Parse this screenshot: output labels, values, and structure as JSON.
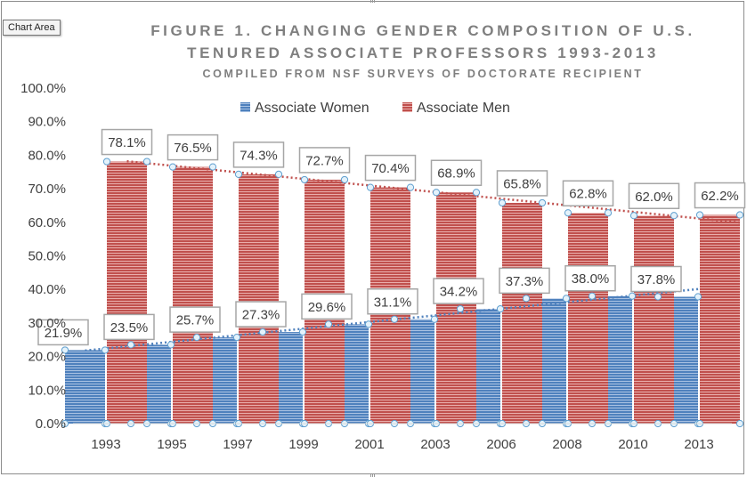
{
  "tooltip": "Chart Area",
  "chart_data": {
    "type": "bar",
    "title": "FIGURE 1. CHANGING GENDER COMPOSITION OF U.S. TENURED ASSOCIATE PROFESSORS 1993-2013",
    "title_line1": "FIGURE 1. CHANGING GENDER COMPOSITION OF U.S.",
    "title_line2": "TENURED ASSOCIATE PROFESSORS 1993-2013",
    "subtitle": "COMPILED FROM NSF SURVEYS OF DOCTORATE RECIPIENT",
    "categories": [
      "1993",
      "1995",
      "1997",
      "1999",
      "2001",
      "2003",
      "2006",
      "2008",
      "2010",
      "2013"
    ],
    "series": [
      {
        "name": "Associate Women",
        "values": [
          21.9,
          23.5,
          25.7,
          27.3,
          29.6,
          31.1,
          34.2,
          37.3,
          38.0,
          37.8
        ],
        "labels": [
          "21.9%",
          "23.5%",
          "25.7%",
          "27.3%",
          "29.6%",
          "31.1%",
          "34.2%",
          "37.3%",
          "38.0%",
          "37.8%"
        ],
        "color": "#4f81bd",
        "trendline": "linear"
      },
      {
        "name": "Associate Men",
        "values": [
          78.1,
          76.5,
          74.3,
          72.7,
          70.4,
          68.9,
          65.8,
          62.8,
          62.0,
          62.2
        ],
        "labels": [
          "78.1%",
          "76.5%",
          "74.3%",
          "72.7%",
          "70.4%",
          "68.9%",
          "65.8%",
          "62.8%",
          "62.0%",
          "62.2%"
        ],
        "color": "#c0504d",
        "trendline": "linear"
      }
    ],
    "ylim": [
      0,
      100
    ],
    "yticks": [
      "0.0%",
      "10.0%",
      "20.0%",
      "30.0%",
      "40.0%",
      "50.0%",
      "60.0%",
      "70.0%",
      "80.0%",
      "90.0%",
      "100.0%"
    ],
    "grid": false,
    "legend": "top-center",
    "xlabel": "",
    "ylabel": ""
  }
}
